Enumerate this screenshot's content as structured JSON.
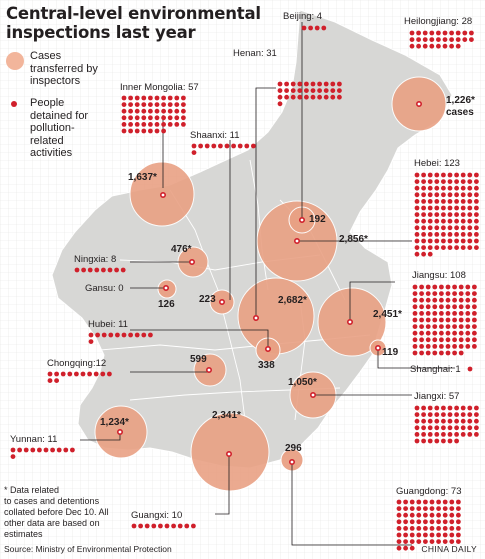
{
  "title": [
    "Central-level environmental",
    "inspections last year"
  ],
  "legend": {
    "cases": [
      "Cases",
      "transferred by",
      "inspectors"
    ],
    "people": [
      "People",
      "detained for",
      "pollution-",
      "related",
      "activities"
    ]
  },
  "note": [
    "* Data related",
    "to cases and detentions",
    "collated before Dec 10. All",
    "other data are based on",
    "estimates"
  ],
  "source": "Source: Ministry of Environmental Protection",
  "credit": "CHINA DAILY",
  "colors": {
    "bubble": "#e9a184",
    "dot": "#d0202b",
    "land": "#d8d8d6",
    "grid": "#f7f7f7"
  },
  "chart_data": {
    "type": "bubble-map",
    "regions": [
      {
        "name": "Heilongjiang",
        "cases": "1,226*",
        "cases_suffix": "cases",
        "detained": 28
      },
      {
        "name": "Beijing",
        "cases": "192",
        "detained": 4
      },
      {
        "name": "Henan",
        "cases": "2,682*",
        "detained": 31
      },
      {
        "name": "Inner Mongolia",
        "cases": "1,637*",
        "detained": 57
      },
      {
        "name": "Shaanxi",
        "cases": "223",
        "detained": 11
      },
      {
        "name": "Hebei",
        "cases": "2,856*",
        "detained": 123
      },
      {
        "name": "Ningxia",
        "cases": "476*",
        "detained": 8
      },
      {
        "name": "Gansu",
        "cases": "126",
        "detained": 0
      },
      {
        "name": "Jiangsu",
        "cases": "2,451*",
        "detained": 108
      },
      {
        "name": "Hubei",
        "cases": "338",
        "detained": 11
      },
      {
        "name": "Shanghai",
        "cases": "119",
        "detained": 1
      },
      {
        "name": "Chongqing",
        "cases": "599",
        "detained": 12
      },
      {
        "name": "Jiangxi",
        "cases": "1,050*",
        "detained": 57
      },
      {
        "name": "Yunnan",
        "cases": "1,234*",
        "detained": 11
      },
      {
        "name": "Guangxi",
        "cases": "2,341*",
        "detained": 10
      },
      {
        "name": "Guangdong",
        "cases": "296",
        "detained": 73
      }
    ]
  }
}
